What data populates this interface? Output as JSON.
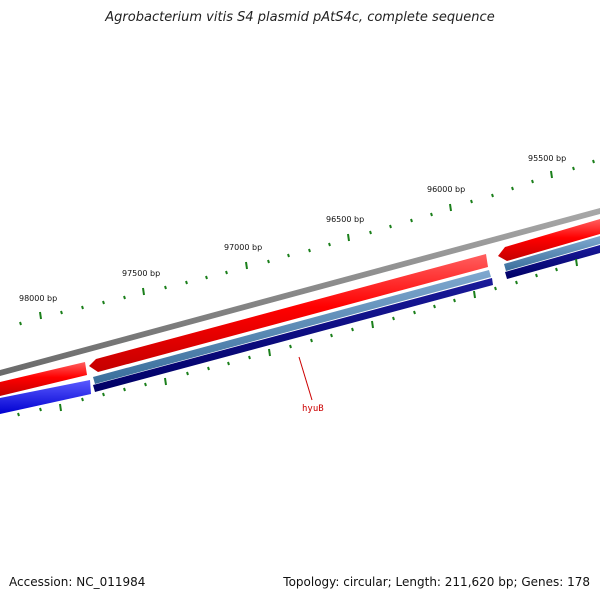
{
  "title": "Agrobacterium vitis S4 plasmid pAtS4c, complete sequence",
  "footer": {
    "accession": "Accession: NC_011984",
    "summary": "Topology: circular; Length: 211,620 bp; Genes: 178"
  },
  "ruler": {
    "labels": [
      "98000 bp",
      "97500 bp",
      "97000 bp",
      "96500 bp",
      "96000 bp",
      "95500 bp"
    ]
  },
  "genes": [
    {
      "name": "hyuB",
      "strand": "forward"
    }
  ],
  "colors": {
    "backbone": "#808080",
    "forward_gene": "#ff0000",
    "forward_cds": "#4682b4",
    "reverse_gene": "#0000ff",
    "reverse_cds": "#000080",
    "ticks": "#1a7f1a",
    "gene_label": "#cc0000"
  }
}
